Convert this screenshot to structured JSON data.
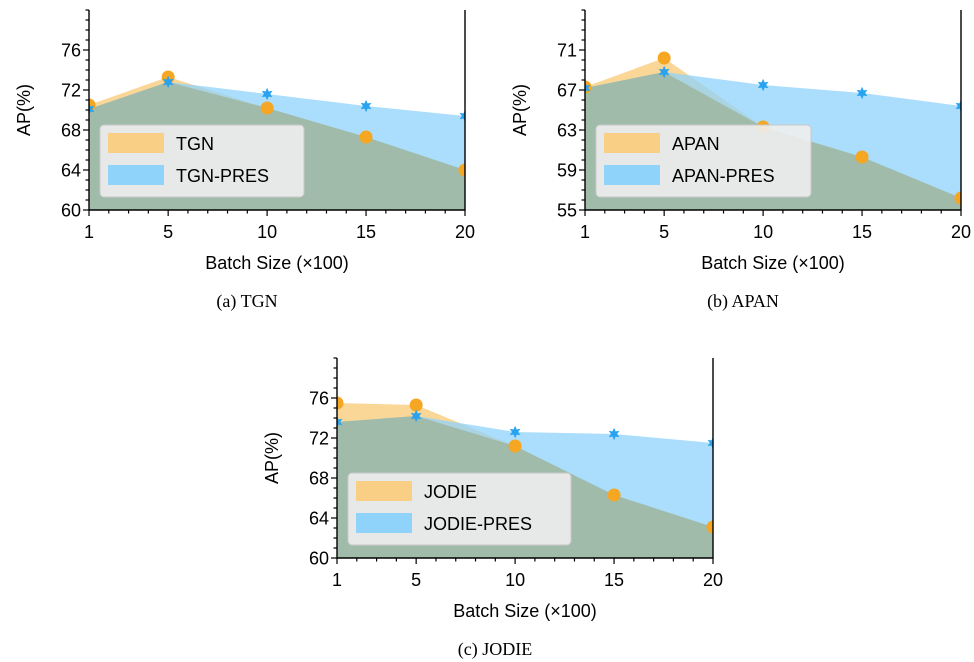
{
  "colors": {
    "base": "#f5a623",
    "base_fill": "#f9cf85",
    "pres": "#29a3f0",
    "pres_fill": "#8fd3fb",
    "legend_bg": "#eeeeee",
    "legend_border": "#c8c8c8"
  },
  "chart_data": [
    {
      "type": "area",
      "caption": "(a)  TGN",
      "xlabel": "Batch Size (×100)",
      "ylabel": "AP(%)",
      "x": [
        1,
        5,
        10,
        15,
        20
      ],
      "xlim": [
        1,
        20
      ],
      "xticks": [
        1,
        5,
        10,
        15,
        20
      ],
      "ylim": [
        60,
        80
      ],
      "yticks": [
        60,
        64,
        68,
        72,
        76
      ],
      "legend_position": "lower-left",
      "series": [
        {
          "name": "TGN",
          "values": [
            70.5,
            73.3,
            70.2,
            67.3,
            64.0
          ],
          "marker": "circle"
        },
        {
          "name": "TGN-PRES",
          "values": [
            70.1,
            72.8,
            71.6,
            70.4,
            69.4
          ],
          "marker": "star"
        }
      ]
    },
    {
      "type": "area",
      "caption": "(b)  APAN",
      "xlabel": "Batch Size (×100)",
      "ylabel": "AP(%)",
      "x": [
        1,
        5,
        10,
        15,
        20
      ],
      "xlim": [
        1,
        20
      ],
      "xticks": [
        1,
        5,
        10,
        15,
        20
      ],
      "ylim": [
        55,
        75
      ],
      "yticks": [
        55,
        59,
        63,
        67,
        71
      ],
      "legend_position": "lower-left",
      "series": [
        {
          "name": "APAN",
          "values": [
            67.3,
            70.2,
            63.3,
            60.3,
            56.2
          ],
          "marker": "circle"
        },
        {
          "name": "APAN-PRES",
          "values": [
            67.2,
            68.8,
            67.5,
            66.7,
            65.4
          ],
          "marker": "star"
        }
      ]
    },
    {
      "type": "area",
      "caption": "(c)  JODIE",
      "xlabel": "Batch Size (×100)",
      "ylabel": "AP(%)",
      "x": [
        1,
        5,
        10,
        15,
        20
      ],
      "xlim": [
        1,
        20
      ],
      "xticks": [
        1,
        5,
        10,
        15,
        20
      ],
      "ylim": [
        60,
        80
      ],
      "yticks": [
        60,
        64,
        68,
        72,
        76
      ],
      "legend_position": "lower-left",
      "series": [
        {
          "name": "JODIE",
          "values": [
            75.5,
            75.3,
            71.2,
            66.3,
            63.1
          ],
          "marker": "circle"
        },
        {
          "name": "JODIE-PRES",
          "values": [
            73.6,
            74.2,
            72.6,
            72.4,
            71.5
          ],
          "marker": "star"
        }
      ]
    }
  ]
}
